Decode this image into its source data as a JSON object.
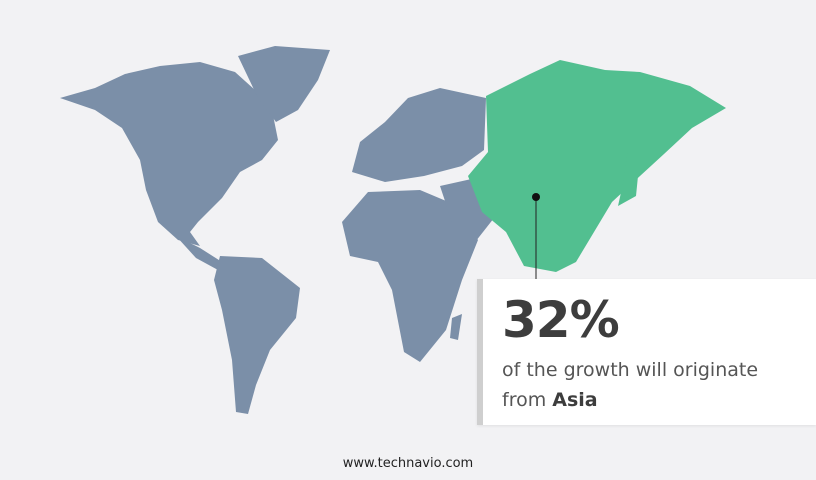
{
  "colors": {
    "land": "#7b8fa8",
    "highlight": "#52bf90",
    "background": "#f2f2f4"
  },
  "highlight_region": "Asia",
  "callout": {
    "percent": "32%",
    "text": "of the growth will originate",
    "from_label": "from",
    "region": "Asia"
  },
  "footer": "www.technavio.com"
}
